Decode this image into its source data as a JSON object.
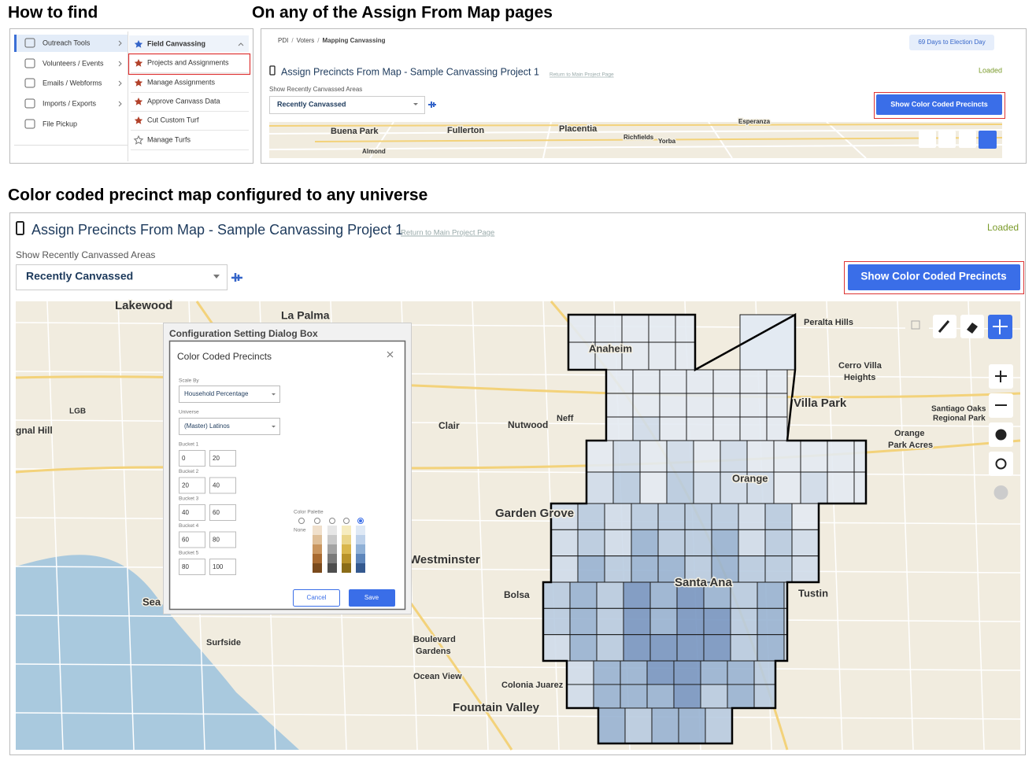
{
  "headings": [
    "How to find",
    "On any of the Assign From Map pages",
    "Color coded precinct map configured to any universe"
  ],
  "menu": {
    "left": [
      "Outreach Tools",
      "Volunteers / Events",
      "Emails / Webforms",
      "Imports / Exports",
      "File Pickup"
    ],
    "right": [
      "Field Canvassing",
      "Projects and Assignments",
      "Manage Assignments",
      "Approve Canvass Data",
      "Cut Custom Turf",
      "Manage Turfs"
    ]
  },
  "preview": {
    "breadcrumb": [
      "PDI",
      "Voters",
      "Mapping Canvassing"
    ],
    "breadcrumb_separator": "/",
    "election_badge": "69 Days to Election Day",
    "title": "Assign Precincts From Map - Sample Canvassing Project 1",
    "return_link": "Return to Main Project Page",
    "status": "Loaded",
    "filter_label": "Show Recently Canvassed Areas",
    "filter_value": "Recently Canvassed",
    "button": "Show Color Coded Precincts",
    "map_labels": [
      "Buena Park",
      "Fullerton",
      "Placentia",
      "Richfields",
      "Yorba",
      "Almond",
      "Esperanza"
    ]
  },
  "main": {
    "title": "Assign Precincts From Map - Sample Canvassing Project 1",
    "return_link": "Return to Main Project Page",
    "status": "Loaded",
    "filter_label": "Show Recently Canvassed Areas",
    "filter_value": "Recently Canvassed",
    "button": "Show Color Coded Precincts",
    "map_labels": [
      "Lakewood",
      "La Palma",
      "Anaheim",
      "Peralta Hills",
      "Cerro Villa",
      "Heights",
      "Villa Park",
      "Santiago Oaks",
      "Regional Park",
      "Orange",
      "Park Acres",
      "Orange",
      "LGB",
      "gnal Hill",
      "Clair",
      "Nutwood",
      "Neff",
      "Garden Grove",
      "Westminster",
      "Bolsa",
      "Santa Ana",
      "Tustin",
      "Sea",
      "Surfside",
      "Boulevard",
      "Gardens",
      "Ocean View",
      "Colonia Juarez",
      "Fountain Valley"
    ]
  },
  "dialog": {
    "window_title": "Configuration Setting Dialog Box",
    "title": "Color Coded Precincts",
    "scale_by_label": "Scale By",
    "scale_by_value": "Household Percentage",
    "universe_label": "Universe",
    "universe_value": "(Master) Latinos",
    "buckets": [
      {
        "label": "Bucket 1",
        "min": "0",
        "max": "20"
      },
      {
        "label": "Bucket 2",
        "min": "20",
        "max": "40"
      },
      {
        "label": "Bucket 3",
        "min": "40",
        "max": "60"
      },
      {
        "label": "Bucket 4",
        "min": "60",
        "max": "80"
      },
      {
        "label": "Bucket 5",
        "min": "80",
        "max": "100"
      }
    ],
    "palette_label": "Color Palette",
    "palette_none": "None",
    "cancel": "Cancel",
    "save": "Save"
  }
}
